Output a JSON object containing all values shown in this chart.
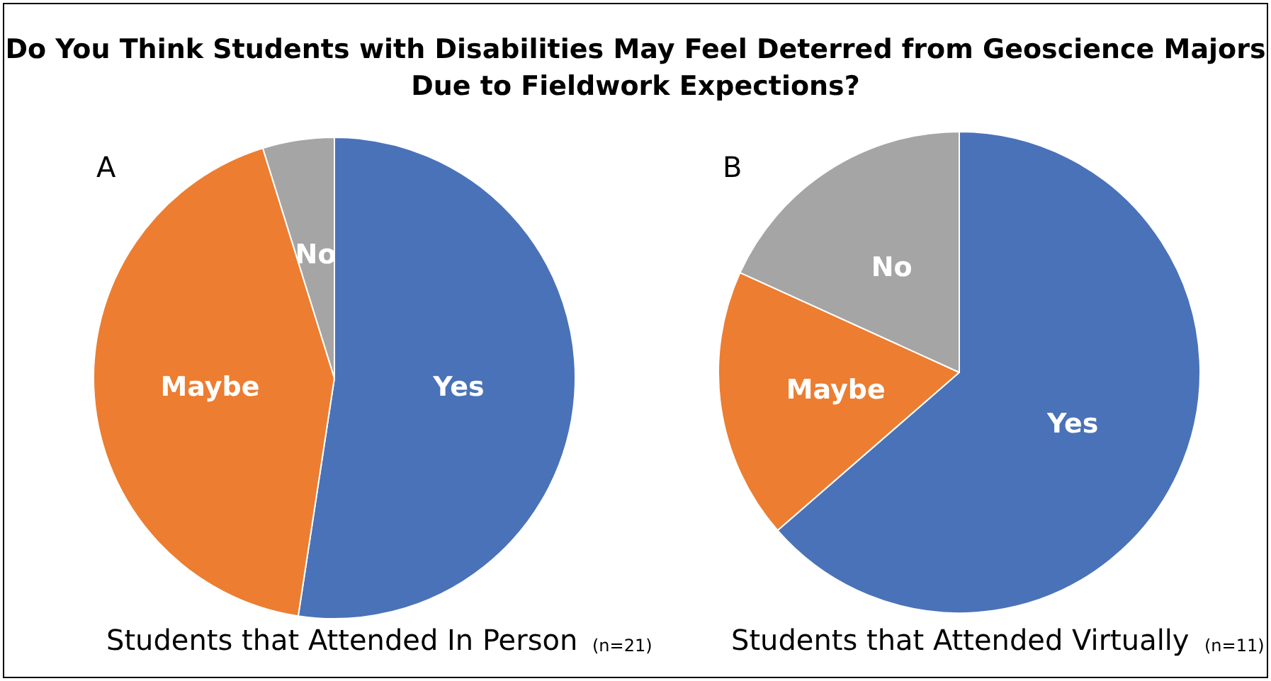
{
  "chart_data": [
    {
      "type": "pie",
      "title": "Do You Think Students with Disabilities May Feel Deterred from Geoscience Majors Due to Fieldwork Expections?",
      "categories": [
        "Yes",
        "Maybe",
        "No"
      ],
      "values": [
        52.4,
        42.8,
        4.8
      ],
      "colors": [
        "#4a72b8",
        "#ed7d31",
        "#a5a5a5"
      ],
      "annotations": [
        "A",
        "Students that Attended In Person",
        "(n=21)"
      ]
    },
    {
      "type": "pie",
      "categories": [
        "Yes",
        "Maybe",
        "No"
      ],
      "values": [
        63.6,
        18.2,
        18.2
      ],
      "colors": [
        "#4a72b8",
        "#ed7d31",
        "#a5a5a5"
      ],
      "annotations": [
        "B",
        "Students that Attended Virtually",
        "(n=11)"
      ]
    }
  ]
}
